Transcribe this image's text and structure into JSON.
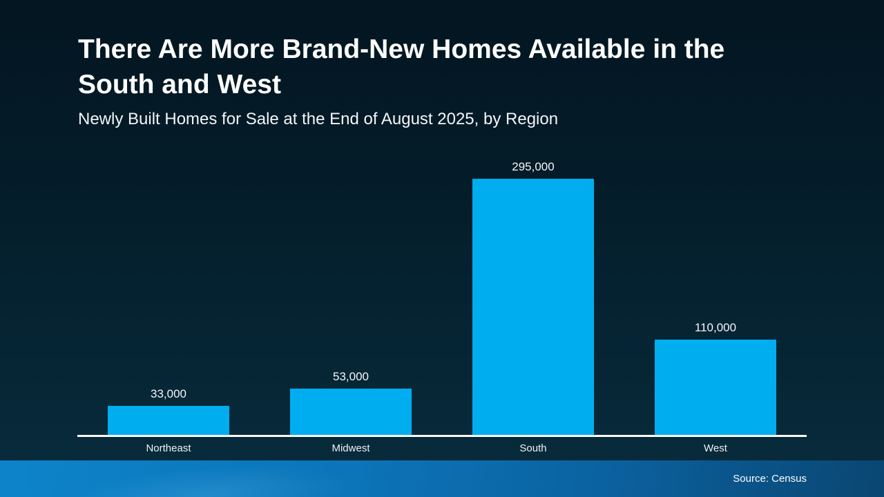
{
  "header": {
    "title": "There Are More Brand-New Homes Available in the South and West",
    "subtitle": "Newly Built Homes for Sale at the End of August 2025, by Region"
  },
  "chart_data": {
    "type": "bar",
    "title": "There Are More Brand-New Homes Available in the South and West",
    "subtitle": "Newly Built Homes for Sale at the End of August 2025, by Region",
    "categories": [
      "Northeast",
      "Midwest",
      "South",
      "West"
    ],
    "values": [
      33000,
      53000,
      295000,
      110000
    ],
    "value_labels": [
      "33,000",
      "53,000",
      "295,000",
      "110,000"
    ],
    "xlabel": "",
    "ylabel": "",
    "ylim": [
      0,
      295000
    ],
    "grid": false,
    "legend": "none",
    "bar_color": "#00aeef",
    "axis_color": "#ffffff"
  },
  "footer": {
    "source": "Source: Census"
  },
  "colors": {
    "background_top": "#031621",
    "background_bottom": "#082c3d",
    "bar": "#00aeef",
    "axis_line": "#ffffff",
    "footer_gradient_left": "#0d84ca",
    "footer_gradient_right": "#0a4672",
    "text": "#ffffff"
  }
}
